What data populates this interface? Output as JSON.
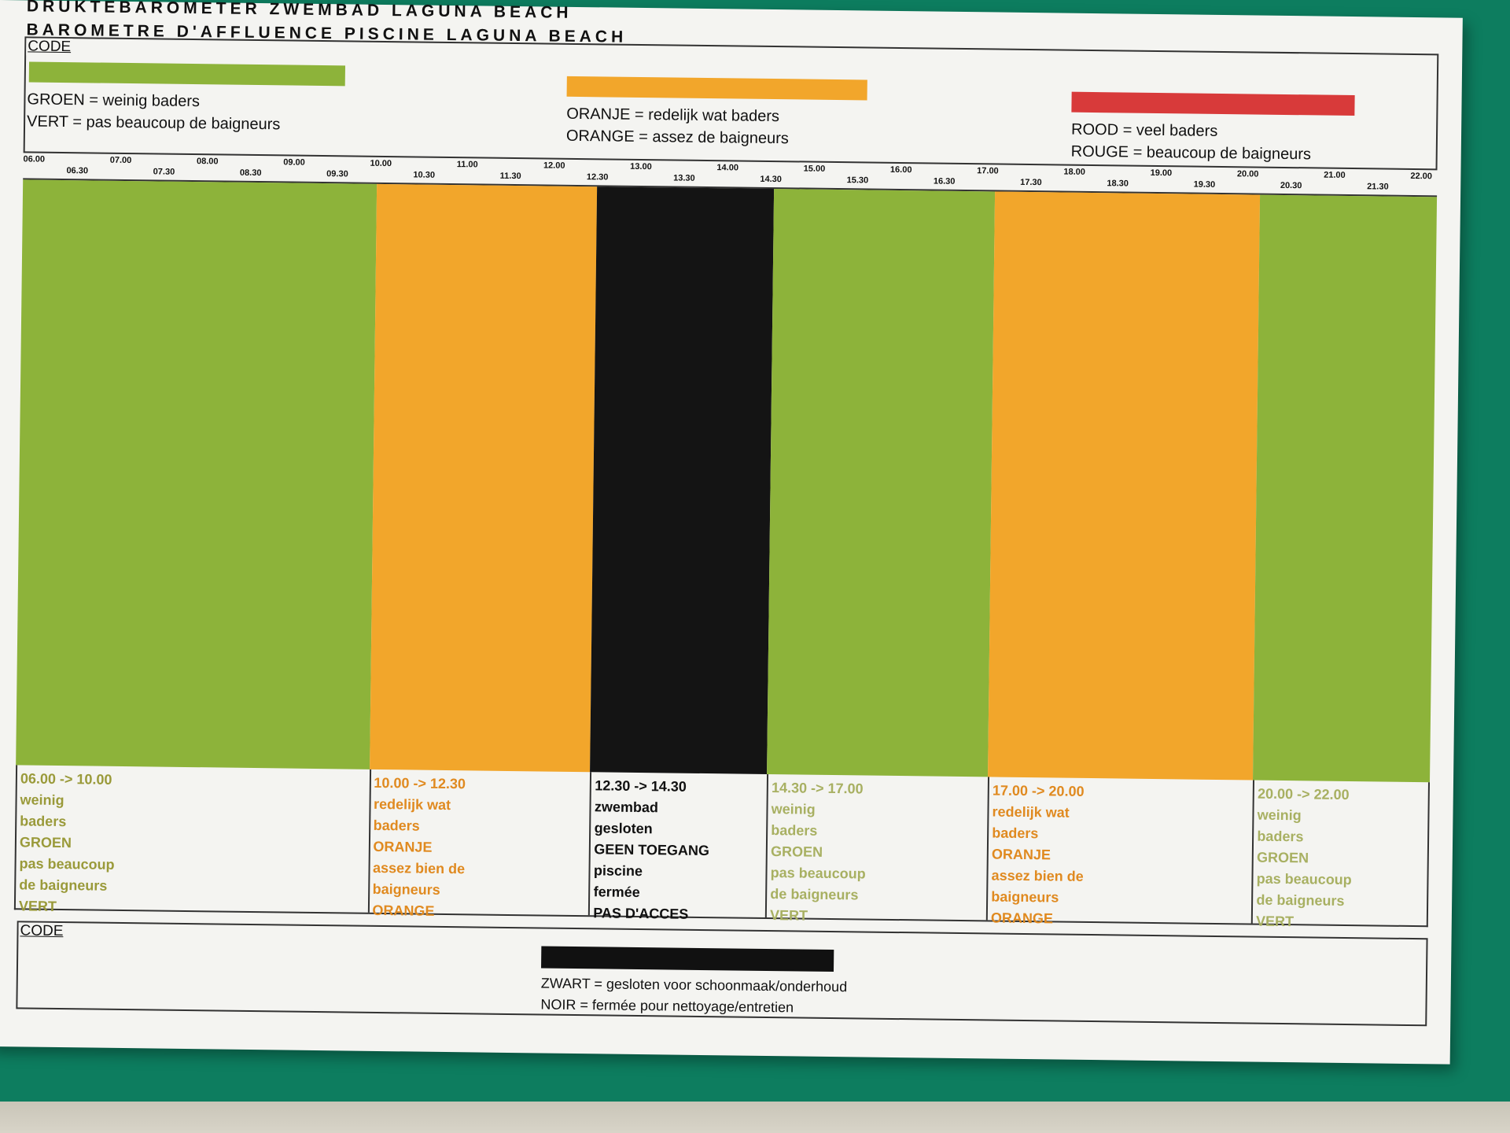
{
  "title_line1": "DRUKTEBAROMETER ZWEMBAD LAGUNA BEACH",
  "title_line2": "BAROMETRE D'AFFLUENCE PISCINE LAGUNA BEACH",
  "legend": {
    "code_label": "CODE",
    "green": {
      "line1": "GROEN = weinig baders",
      "line2": "VERT = pas beaucoup de baigneurs",
      "color": "#8db33a"
    },
    "orange": {
      "line1": "ORANJE = redelijk wat baders",
      "line2": "ORANGE = assez de baigneurs",
      "color": "#f2a62b"
    },
    "red": {
      "line1": "ROOD = veel baders",
      "line2": "ROUGE = beaucoup de baigneurs",
      "color": "#d83a3a"
    }
  },
  "times": [
    "06.00",
    "06.30",
    "07.00",
    "07.30",
    "08.00",
    "08.30",
    "09.00",
    "09.30",
    "10.00",
    "10.30",
    "11.00",
    "11.30",
    "12.00",
    "12.30",
    "13.00",
    "13.30",
    "14.00",
    "14.30",
    "15.00",
    "15.30",
    "16.00",
    "16.30",
    "17.00",
    "17.30",
    "18.00",
    "18.30",
    "19.00",
    "19.30",
    "20.00",
    "20.30",
    "21.00",
    "21.30",
    "22.00"
  ],
  "periods": [
    {
      "color": "#8db33a",
      "text_color": "#9a9a3a",
      "lines": [
        "06.00 -> 10.00",
        "weinig",
        "baders",
        "GROEN",
        "pas beaucoup",
        "de baigneurs",
        "VERT"
      ]
    },
    {
      "color": "#f2a62b",
      "text_color": "#e08a20",
      "lines": [
        "10.00 -> 12.30",
        "redelijk wat",
        "baders",
        "ORANJE",
        "assez bien de",
        "baigneurs",
        "ORANGE"
      ]
    },
    {
      "color": "#141414",
      "text_color": "#111111",
      "lines": [
        "12.30 -> 14.30",
        "zwembad",
        "gesloten",
        "GEEN TOEGANG",
        "piscine",
        "fermée",
        "PAS D'ACCES"
      ]
    },
    {
      "color": "#8db33a",
      "text_color": "#a8b062",
      "lines": [
        "14.30 -> 17.00",
        "weinig",
        "baders",
        "GROEN",
        "pas beaucoup",
        "de baigneurs",
        "VERT"
      ]
    },
    {
      "color": "#f2a62b",
      "text_color": "#e08a20",
      "lines": [
        "17.00 -> 20.00",
        "redelijk wat",
        "baders",
        "ORANJE",
        "assez bien de",
        "baigneurs",
        "ORANGE"
      ]
    },
    {
      "color": "#8db33a",
      "text_color": "#a8b062",
      "lines": [
        "20.00 -> 22.00",
        "weinig",
        "baders",
        "GROEN",
        "pas beaucoup",
        "de baigneurs",
        "VERT"
      ]
    }
  ],
  "bottom": {
    "code_label": "CODE",
    "line1": "ZWART = gesloten voor schoonmaak/onderhoud",
    "line2": "NOIR = fermée pour nettoyage/entretien"
  }
}
